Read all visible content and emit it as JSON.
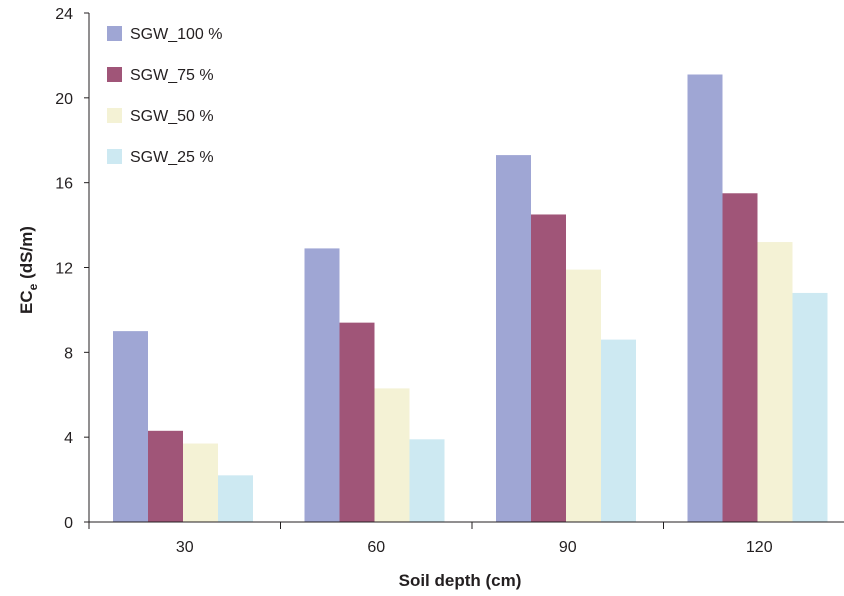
{
  "chart_data": {
    "type": "bar",
    "categories": [
      "30",
      "60",
      "90",
      "120"
    ],
    "series": [
      {
        "name": "SGW_100 %",
        "color": "#9fa6d4",
        "values": [
          9.0,
          12.9,
          17.3,
          21.1
        ]
      },
      {
        "name": "SGW_75 %",
        "color": "#a05578",
        "values": [
          4.3,
          9.4,
          14.5,
          15.5
        ]
      },
      {
        "name": "SGW_50 %",
        "color": "#f4f2d5",
        "values": [
          3.7,
          6.3,
          11.9,
          13.2
        ]
      },
      {
        "name": "SGW_25 %",
        "color": "#cde9f2",
        "values": [
          2.2,
          3.9,
          8.6,
          10.8
        ]
      }
    ],
    "xlabel": "Soil depth (cm)",
    "ylabel": {
      "main": "EC",
      "sub": "e",
      "rest": " (dS/m)"
    },
    "ylim": [
      0,
      24
    ],
    "yticks": [
      "0",
      "4",
      "8",
      "12",
      "16",
      "20",
      "24"
    ],
    "grid": false,
    "legend": "top-left"
  }
}
